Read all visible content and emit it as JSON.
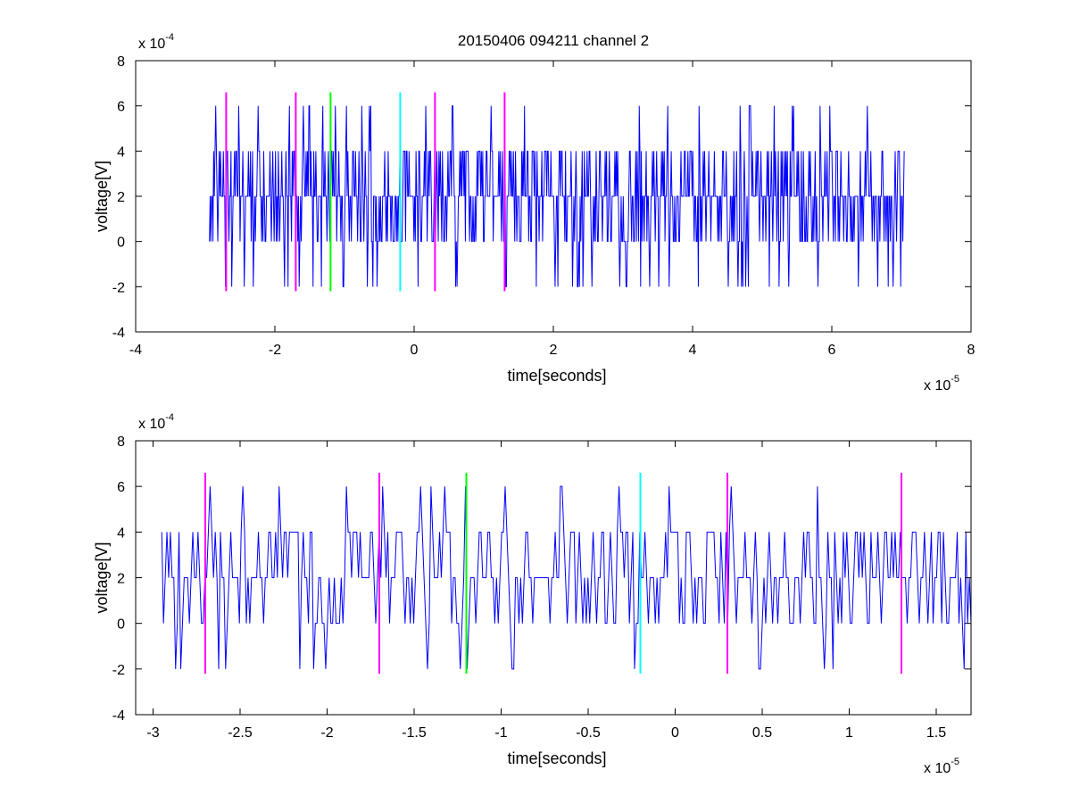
{
  "figure": {
    "title": "20150406 094211 channel 2"
  },
  "chart_data": [
    {
      "type": "line",
      "xlabel": "time[seconds]",
      "ylabel": "voltage[V]",
      "xlim": [
        -4e-05,
        8e-05
      ],
      "ylim": [
        -0.0004,
        0.0008
      ],
      "x_ticks": [
        -4e-05,
        -2e-05,
        0,
        2e-05,
        4e-05,
        6e-05,
        8e-05
      ],
      "x_tick_labels": [
        "-4",
        "-2",
        "0",
        "2",
        "4",
        "6",
        "8"
      ],
      "y_ticks": [
        -0.0004,
        -0.0002,
        0,
        0.0002,
        0.0004,
        0.0006,
        0.0008
      ],
      "y_tick_labels": [
        "-4",
        "-2",
        "0",
        "2",
        "4",
        "6",
        "8"
      ],
      "x_exponent": {
        "base": "x 10",
        "power": "-5"
      },
      "y_exponent": {
        "base": "x 10",
        "power": "-4"
      },
      "signal_color": "#0000ff",
      "signal": {
        "x_start": -2.94e-05,
        "x_end": 7.04e-05,
        "samples": 1000,
        "levels": [
          -0.0002,
          0,
          0.0002,
          0.0004,
          0.0006
        ],
        "seed": 20150406
      },
      "markers": [
        {
          "x": -2.7e-05,
          "y_range": [
            -0.00022,
            0.00066
          ],
          "color": "#ff00ff"
        },
        {
          "x": -1.7e-05,
          "y_range": [
            -0.00022,
            0.00066
          ],
          "color": "#ff00ff"
        },
        {
          "x": -1.2e-05,
          "y_range": [
            -0.00022,
            0.00066
          ],
          "color": "#00ff00"
        },
        {
          "x": -2e-06,
          "y_range": [
            -0.00022,
            0.00066
          ],
          "color": "#00ffff"
        },
        {
          "x": 3e-06,
          "y_range": [
            -0.00022,
            0.00066
          ],
          "color": "#ff00ff"
        },
        {
          "x": 1.3e-05,
          "y_range": [
            -0.00022,
            0.00066
          ],
          "color": "#ff00ff"
        }
      ],
      "grid": false
    },
    {
      "type": "line",
      "xlabel": "time[seconds]",
      "ylabel": "voltage[V]",
      "xlim": [
        -3.1e-05,
        1.7e-05
      ],
      "ylim": [
        -0.0004,
        0.0008
      ],
      "x_ticks": [
        -3e-05,
        -2.5e-05,
        -2e-05,
        -1.5e-05,
        -1e-05,
        -5e-06,
        0,
        5e-06,
        1e-05,
        1.5e-05
      ],
      "x_tick_labels": [
        "-3",
        "-2.5",
        "-2",
        "-1.5",
        "-1",
        "-0.5",
        "0",
        "0.5",
        "1",
        "1.5"
      ],
      "y_ticks": [
        -0.0004,
        -0.0002,
        0,
        0.0002,
        0.0004,
        0.0006,
        0.0008
      ],
      "y_tick_labels": [
        "-4",
        "-2",
        "0",
        "2",
        "4",
        "6",
        "8"
      ],
      "x_exponent": {
        "base": "x 10",
        "power": "-5"
      },
      "y_exponent": {
        "base": "x 10",
        "power": "-4"
      },
      "signal_color": "#0000ff",
      "signal": {
        "x_start": -2.95e-05,
        "x_end": 1.7e-05,
        "samples": 470,
        "levels": [
          -0.0002,
          0,
          0.0002,
          0.0004,
          0.0006
        ],
        "seed": 94211
      },
      "markers": [
        {
          "x": -2.7e-05,
          "y_range": [
            -0.00022,
            0.00066
          ],
          "color": "#ff00ff"
        },
        {
          "x": -1.7e-05,
          "y_range": [
            -0.00022,
            0.00066
          ],
          "color": "#ff00ff"
        },
        {
          "x": -1.2e-05,
          "y_range": [
            -0.00022,
            0.00066
          ],
          "color": "#00ff00"
        },
        {
          "x": -2e-06,
          "y_range": [
            -0.00022,
            0.00066
          ],
          "color": "#00ffff"
        },
        {
          "x": 3e-06,
          "y_range": [
            -0.00022,
            0.00066
          ],
          "color": "#ff00ff"
        },
        {
          "x": 1.3e-05,
          "y_range": [
            -0.00022,
            0.00066
          ],
          "color": "#ff00ff"
        }
      ],
      "grid": false
    }
  ]
}
